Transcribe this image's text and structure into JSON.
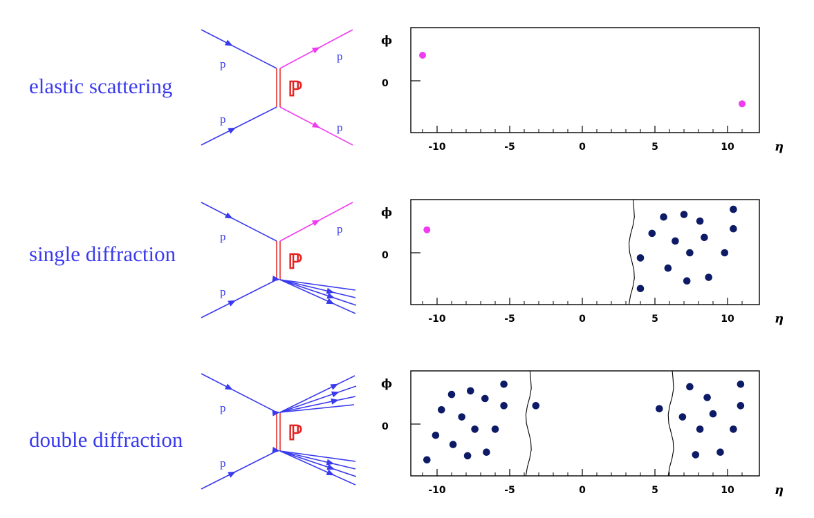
{
  "colors": {
    "incoming": "#3a3aee",
    "elastic_out": "#f03cf0",
    "pomeron": "#e42323",
    "particle": "#0d1a66",
    "proton_dot": "#f03cf0"
  },
  "axis": {
    "x_symbol": "η",
    "y_symbol": "ϕ",
    "y_zero_label": "0",
    "x_ticks": [
      "-10",
      "-5",
      "0",
      "5",
      "10"
    ]
  },
  "panels": [
    {
      "id": "elastic",
      "label": "elastic scattering",
      "pomeron": "ℙ",
      "proton_labels": {
        "in_top": "p",
        "in_bottom": "p",
        "out_top": "p",
        "out_bottom": "p"
      },
      "protons": [
        {
          "eta": -11.0,
          "phi": 0.5
        },
        {
          "eta": 11.0,
          "phi": -0.45
        }
      ],
      "particles": [],
      "gaps": []
    },
    {
      "id": "single",
      "label": "single diffraction",
      "pomeron": "ℙ",
      "proton_labels": {
        "in_top": "p",
        "in_bottom": "p",
        "out_top": "p"
      },
      "protons": [
        {
          "eta": -10.7,
          "phi": 0.45
        }
      ],
      "particles": [
        {
          "eta": 4.0,
          "phi": -0.1
        },
        {
          "eta": 4.0,
          "phi": -0.7
        },
        {
          "eta": 4.8,
          "phi": 0.38
        },
        {
          "eta": 5.6,
          "phi": 0.7
        },
        {
          "eta": 5.9,
          "phi": -0.3
        },
        {
          "eta": 6.4,
          "phi": 0.23
        },
        {
          "eta": 7.0,
          "phi": 0.75
        },
        {
          "eta": 7.2,
          "phi": -0.55
        },
        {
          "eta": 7.4,
          "phi": 0.0
        },
        {
          "eta": 8.1,
          "phi": 0.62
        },
        {
          "eta": 8.4,
          "phi": 0.3
        },
        {
          "eta": 8.7,
          "phi": -0.48
        },
        {
          "eta": 9.8,
          "phi": 0.0
        },
        {
          "eta": 10.4,
          "phi": 0.85
        },
        {
          "eta": 10.4,
          "phi": 0.47
        }
      ],
      "gaps": [
        3.4
      ]
    },
    {
      "id": "double",
      "label": "double diffraction",
      "pomeron": "ℙ",
      "proton_labels": {
        "in_top": "p",
        "in_bottom": "p"
      },
      "protons": [],
      "particles": [
        {
          "eta": -10.1,
          "phi": -0.22
        },
        {
          "eta": -9.7,
          "phi": 0.28
        },
        {
          "eta": -10.7,
          "phi": -0.7
        },
        {
          "eta": -9.0,
          "phi": 0.58
        },
        {
          "eta": -8.9,
          "phi": -0.4
        },
        {
          "eta": -8.3,
          "phi": 0.14
        },
        {
          "eta": -7.7,
          "phi": 0.65
        },
        {
          "eta": -7.9,
          "phi": -0.62
        },
        {
          "eta": -7.4,
          "phi": -0.1
        },
        {
          "eta": -6.7,
          "phi": 0.5
        },
        {
          "eta": -6.6,
          "phi": -0.55
        },
        {
          "eta": -6.0,
          "phi": -0.1
        },
        {
          "eta": -5.4,
          "phi": 0.78
        },
        {
          "eta": -5.4,
          "phi": 0.36
        },
        {
          "eta": -3.2,
          "phi": 0.36
        },
        {
          "eta": 5.3,
          "phi": 0.3
        },
        {
          "eta": 6.9,
          "phi": 0.14
        },
        {
          "eta": 7.4,
          "phi": 0.73
        },
        {
          "eta": 7.8,
          "phi": -0.6
        },
        {
          "eta": 8.1,
          "phi": -0.1
        },
        {
          "eta": 8.6,
          "phi": 0.52
        },
        {
          "eta": 9.0,
          "phi": 0.2
        },
        {
          "eta": 9.5,
          "phi": -0.55
        },
        {
          "eta": 10.4,
          "phi": -0.1
        },
        {
          "eta": 10.9,
          "phi": 0.78
        },
        {
          "eta": 10.9,
          "phi": 0.36
        }
      ],
      "gaps": [
        -3.7,
        6.1
      ]
    }
  ]
}
